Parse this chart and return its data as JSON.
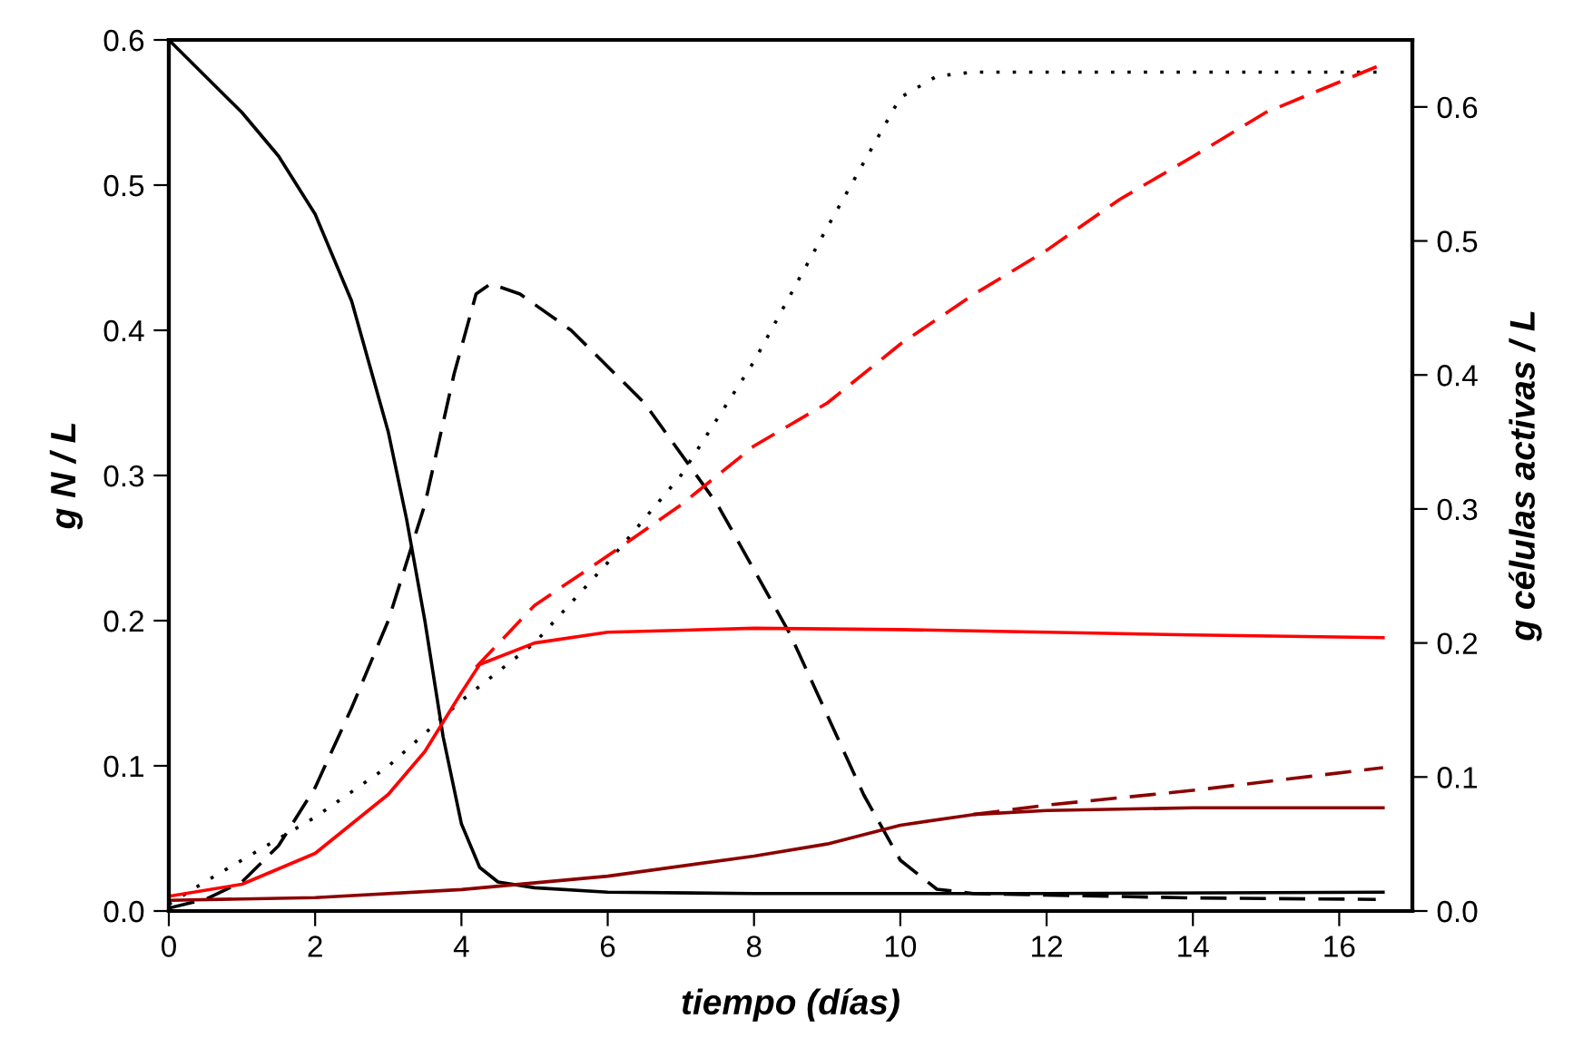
{
  "chart_data": {
    "type": "line",
    "xlabel": "tiempo (días)",
    "ylabel": "g N / L",
    "y2label": "g células activas / L",
    "xlim": [
      0,
      17
    ],
    "xticks": [
      0,
      2,
      4,
      6,
      8,
      10,
      12,
      14,
      16
    ],
    "ylim": [
      0,
      0.6
    ],
    "yticks": [
      {
        "value": 0,
        "label": "0.0"
      },
      0.1,
      0.2,
      0.3,
      0.4,
      0.5,
      0.6
    ],
    "y2lim": [
      0,
      0.65
    ],
    "y2ticks": [
      {
        "value": 0,
        "label": "0.0"
      },
      0.1,
      0.2,
      0.3,
      0.4,
      0.5,
      0.6
    ],
    "grid": false,
    "legend": false,
    "marker": "none",
    "series": [
      {
        "color": "#000000",
        "line_style": "solid",
        "x": [
          0,
          0.5,
          1,
          1.5,
          2,
          2.5,
          3,
          3.25,
          3.5,
          3.75,
          4,
          4.25,
          4.5,
          5,
          6,
          8,
          10,
          12,
          16.6
        ],
        "values": [
          0.6,
          0.575,
          0.55,
          0.52,
          0.48,
          0.42,
          0.33,
          0.27,
          0.2,
          0.12,
          0.06,
          0.03,
          0.02,
          0.016,
          0.013,
          0.012,
          0.012,
          0.012,
          0.013
        ]
      },
      {
        "color": "#000000",
        "line_style": "dashed",
        "x": [
          0,
          0.5,
          1,
          1.5,
          2,
          2.5,
          3,
          3.5,
          3.9,
          4.2,
          4.4,
          4.8,
          5.5,
          6.5,
          7.5,
          8.5,
          9.5,
          10,
          10.5,
          11,
          12,
          14,
          16.5
        ],
        "values": [
          0.002,
          0.008,
          0.02,
          0.045,
          0.085,
          0.14,
          0.2,
          0.28,
          0.37,
          0.425,
          0.432,
          0.425,
          0.4,
          0.35,
          0.28,
          0.19,
          0.08,
          0.035,
          0.015,
          0.012,
          0.011,
          0.009,
          0.008
        ]
      },
      {
        "color": "#000000",
        "line_style": "dotted",
        "axis": "y2",
        "x": [
          0,
          0.5,
          1,
          2,
          3,
          4,
          5,
          6,
          7,
          8,
          9,
          10,
          10.5,
          11,
          16.6
        ],
        "values": [
          0.005,
          0.022,
          0.038,
          0.07,
          0.108,
          0.157,
          0.2,
          0.26,
          0.325,
          0.41,
          0.51,
          0.607,
          0.623,
          0.626,
          0.626
        ]
      },
      {
        "color": "#ff0000",
        "line_style": "solid",
        "axis": "y2",
        "x": [
          0,
          1,
          2,
          3,
          3.5,
          4,
          4.25,
          5,
          6,
          8,
          10,
          12,
          14,
          16.6
        ],
        "values": [
          0.011,
          0.02,
          0.043,
          0.087,
          0.119,
          0.163,
          0.184,
          0.2,
          0.208,
          0.211,
          0.21,
          0.208,
          0.206,
          0.204
        ]
      },
      {
        "color": "#ff0000",
        "line_style": "dashed",
        "axis": "y2",
        "x": [
          4.2,
          5,
          6,
          7,
          8,
          9,
          10,
          11,
          12,
          13,
          14,
          15,
          16.6
        ],
        "values": [
          0.182,
          0.228,
          0.265,
          0.303,
          0.347,
          0.379,
          0.423,
          0.46,
          0.493,
          0.531,
          0.563,
          0.596,
          0.632
        ]
      },
      {
        "color": "#8b0000",
        "line_style": "solid",
        "axis": "y2",
        "x": [
          0,
          2,
          4,
          6,
          8,
          9,
          10,
          11,
          12,
          14,
          16.6
        ],
        "values": [
          0.008,
          0.01,
          0.016,
          0.026,
          0.041,
          0.05,
          0.064,
          0.072,
          0.075,
          0.077,
          0.077
        ]
      },
      {
        "color": "#8b0000",
        "line_style": "dashed",
        "axis": "y2",
        "x": [
          11,
          12,
          14,
          16.6
        ],
        "values": [
          0.072,
          0.079,
          0.09,
          0.107
        ]
      }
    ]
  }
}
